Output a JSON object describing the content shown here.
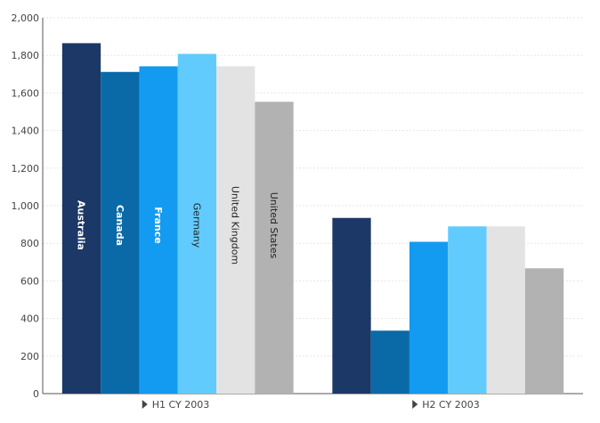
{
  "chart_data": {
    "type": "bar",
    "categories": [
      "H1 CY 2003",
      "H2 CY 2003"
    ],
    "series": [
      {
        "name": "Australia",
        "values": [
          1865,
          935
        ],
        "color": "#1b3866",
        "label_color": "#ffffff",
        "label_weight": "bold"
      },
      {
        "name": "Canada",
        "values": [
          1712,
          335
        ],
        "color": "#0a6aa8",
        "label_color": "#ffffff",
        "label_weight": "bold"
      },
      {
        "name": "France",
        "values": [
          1742,
          808
        ],
        "color": "#129bf0",
        "label_color": "#ffffff",
        "label_weight": "bold"
      },
      {
        "name": "Germany",
        "values": [
          1808,
          890
        ],
        "color": "#62cbfd",
        "label_color": "#222222",
        "label_weight": "normal"
      },
      {
        "name": "United Kingdom",
        "values": [
          1742,
          890
        ],
        "color": "#e3e3e3",
        "label_color": "#222222",
        "label_weight": "normal"
      },
      {
        "name": "United States",
        "values": [
          1553,
          667
        ],
        "color": "#b2b2b2",
        "label_color": "#222222",
        "label_weight": "normal"
      }
    ],
    "ylim": [
      0,
      2000
    ],
    "yticks": [
      0,
      200,
      400,
      600,
      800,
      1000,
      1200,
      1400,
      1600,
      1800,
      2000
    ],
    "ytick_labels": [
      "0",
      "200",
      "400",
      "600",
      "800",
      "1,000",
      "1,200",
      "1,400",
      "1,600",
      "1,800",
      "2,000"
    ],
    "grid": true,
    "bar_labels_on": "first-category",
    "category_marker": "▶",
    "title": "",
    "xlabel": "",
    "ylabel": ""
  }
}
